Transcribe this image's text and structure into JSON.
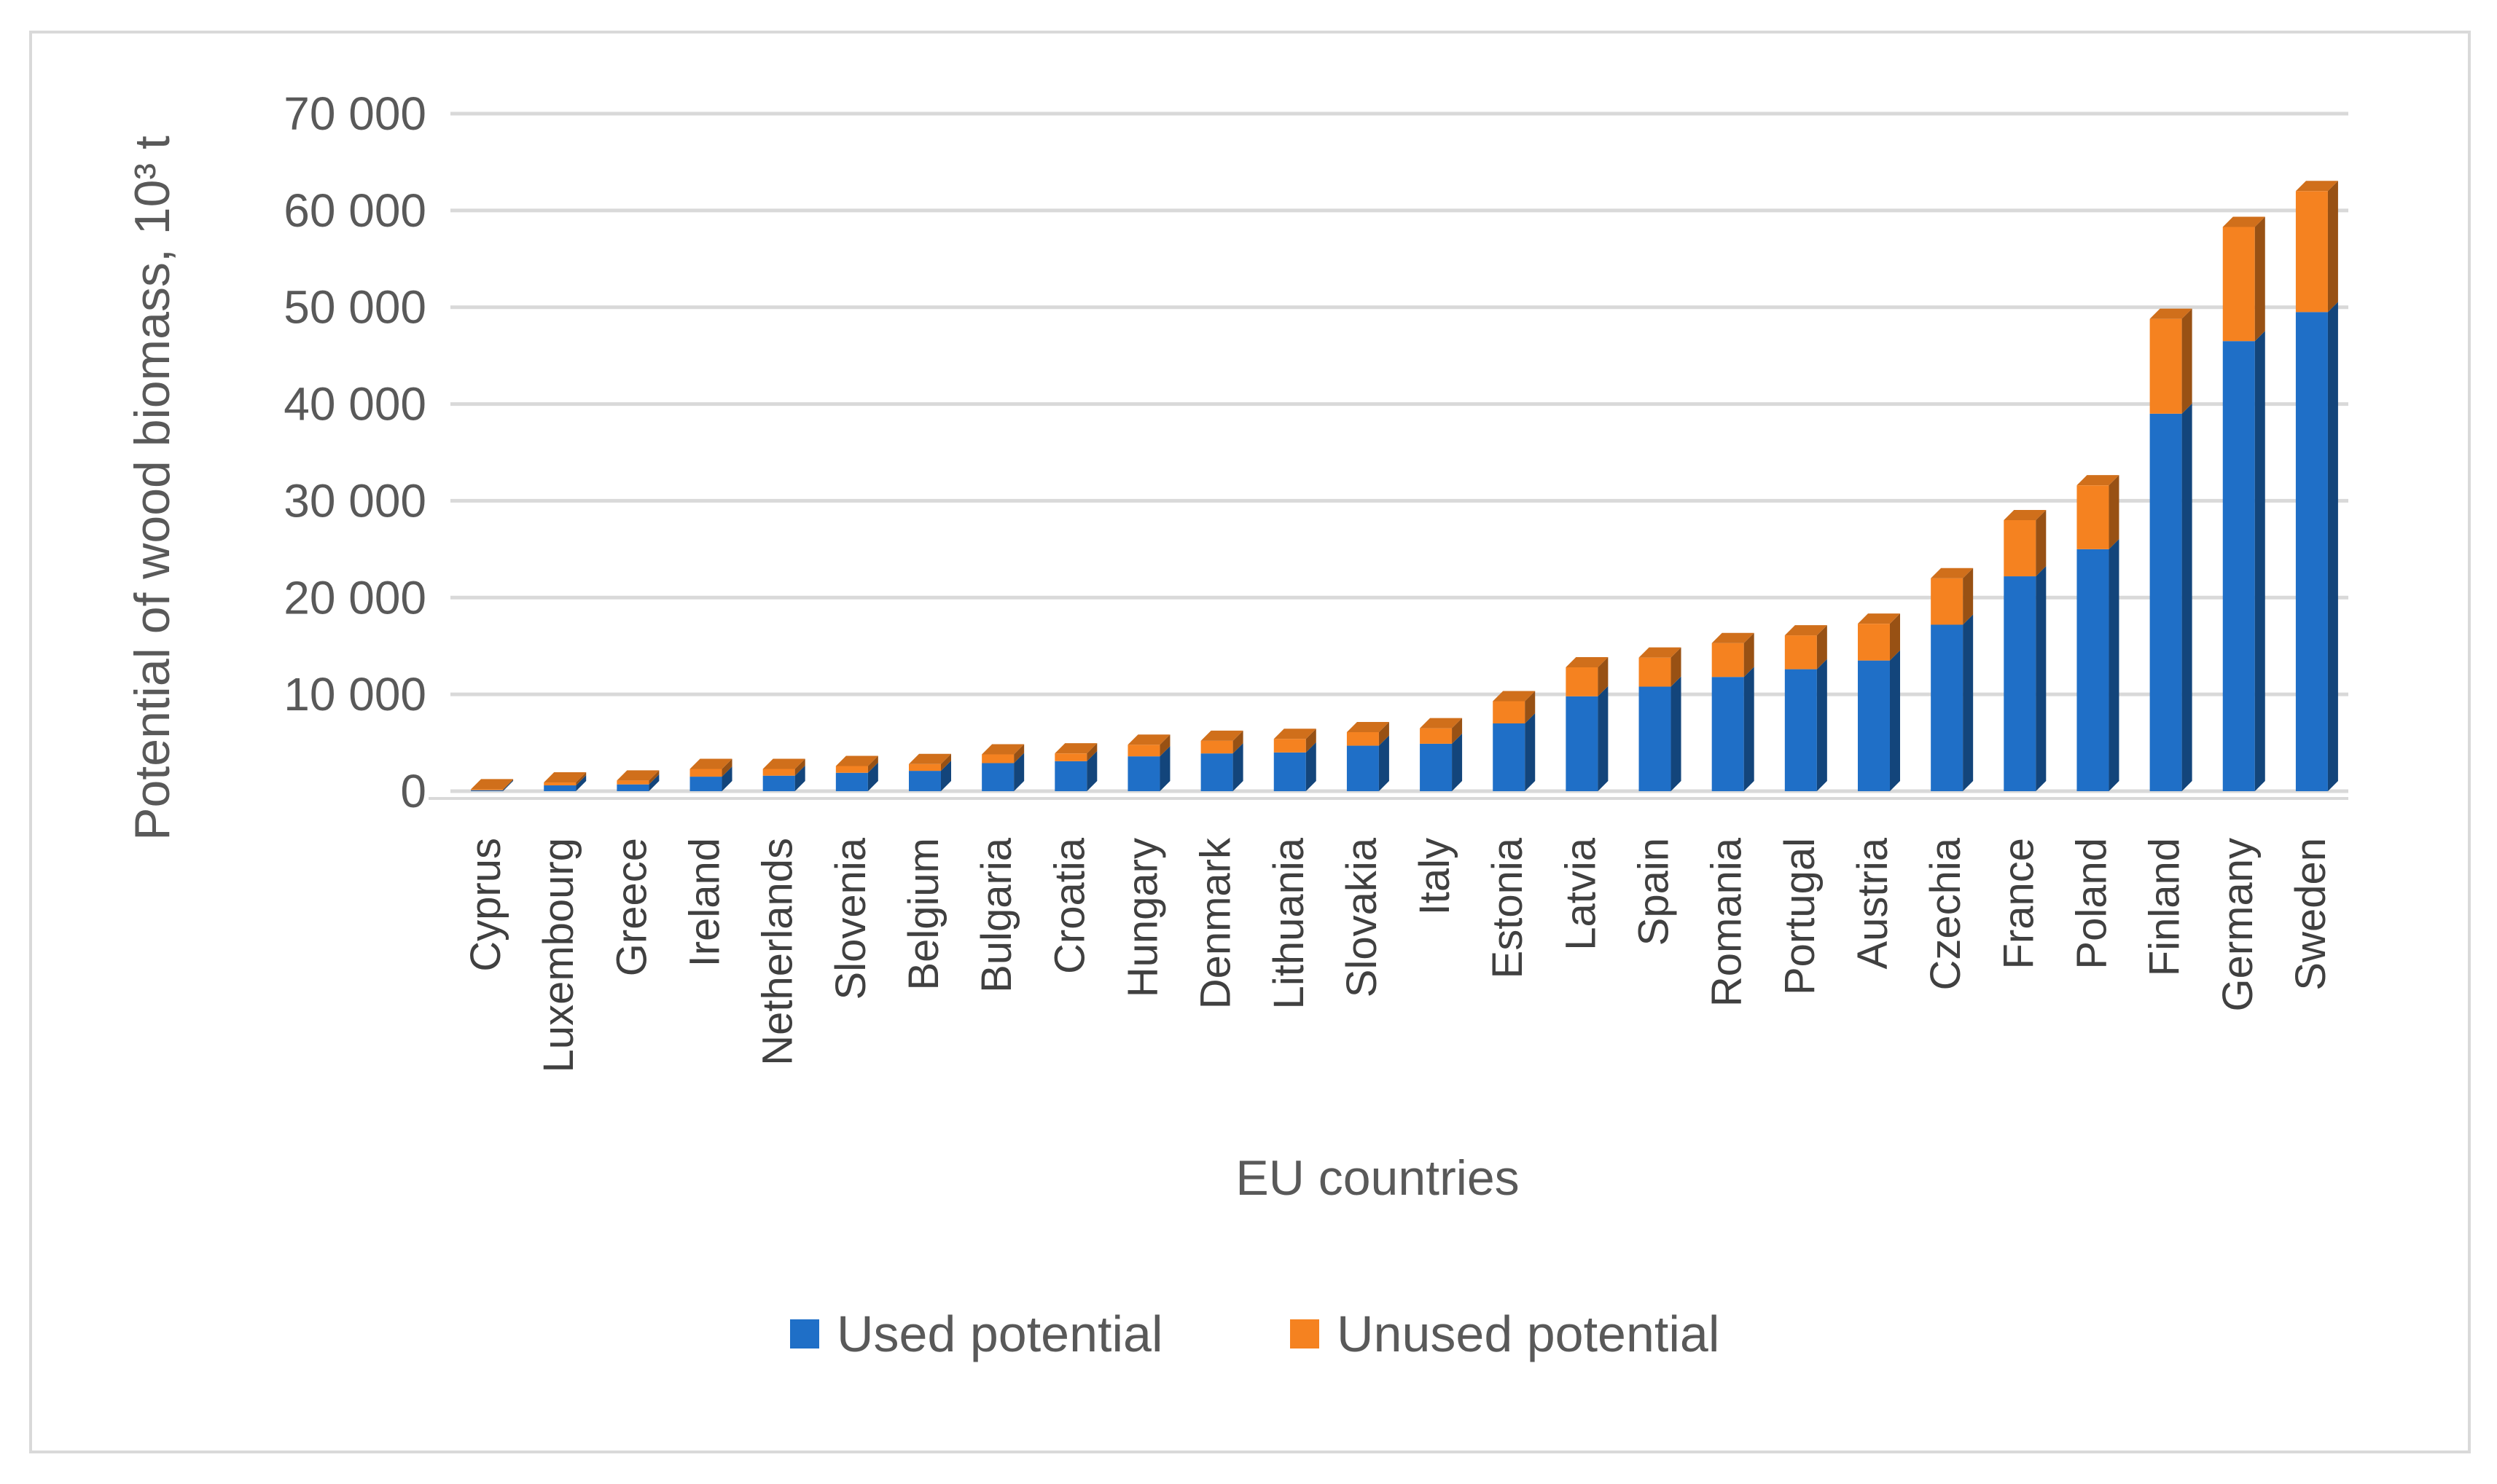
{
  "chart_data": {
    "type": "bar",
    "stacked": true,
    "three_d": true,
    "title": "",
    "xlabel": "EU countries",
    "ylabel": "Potential of wood biomass, 10³ t",
    "ylim": [
      0,
      70000
    ],
    "yticks": [
      0,
      10000,
      20000,
      30000,
      40000,
      50000,
      60000,
      70000
    ],
    "ytick_labels": [
      "0",
      "10 000",
      "20 000",
      "30 000",
      "40 000",
      "50 000",
      "60 000",
      "70 000"
    ],
    "grid": true,
    "legend_position": "bottom",
    "categories": [
      "Cyprus",
      "Luxembourg",
      "Greece",
      "Ireland",
      "Netherlands",
      "Slovenia",
      "Belgium",
      "Bulgaria",
      "Croatia",
      "Hungary",
      "Denmark",
      "Lithuania",
      "Slovakia",
      "Italy",
      "Estonia",
      "Latvia",
      "Spain",
      "Romania",
      "Portugal",
      "Austria",
      "Czechia",
      "France",
      "Poland",
      "Finland",
      "Germany",
      "Sweden"
    ],
    "series": [
      {
        "name": "Used potential",
        "color": "#1f6fc7",
        "values": [
          100,
          600,
          700,
          1500,
          1600,
          1900,
          2100,
          2900,
          3100,
          3600,
          3900,
          4000,
          4700,
          4900,
          7000,
          9800,
          10800,
          11800,
          12600,
          13500,
          17200,
          22200,
          25000,
          39000,
          46500,
          49500
        ]
      },
      {
        "name": "Unused potential",
        "color": "#f58220",
        "values": [
          100,
          300,
          400,
          800,
          700,
          700,
          700,
          900,
          800,
          1200,
          1300,
          1400,
          1400,
          1600,
          2300,
          3000,
          3000,
          3500,
          3500,
          3800,
          4800,
          5800,
          6600,
          9800,
          11800,
          12500
        ]
      }
    ]
  }
}
